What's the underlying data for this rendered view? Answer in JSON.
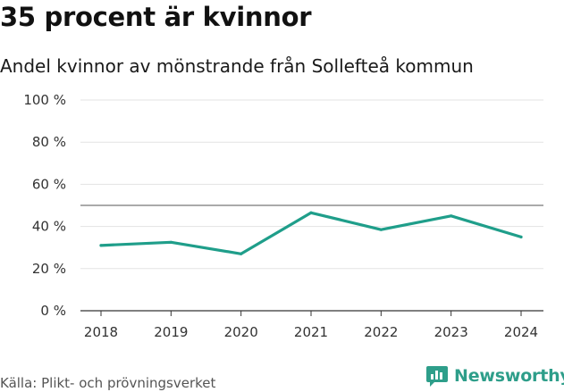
{
  "header": {
    "title": "35 procent är kvinnor",
    "subtitle": "Andel kvinnor av mönstrande från Sollefteå kommun"
  },
  "footer": {
    "source": "Källa: Plikt- och prövningsverket",
    "brand": "Newsworthy",
    "brand_icon": "bar-chart-speech-bubble-icon"
  },
  "colors": {
    "line": "#1f9e8a",
    "grid": "#e3e3e3",
    "reference": "#777777",
    "axis": "#333333",
    "brand": "#2e9e8a"
  },
  "chart_data": {
    "type": "line",
    "title": "35 procent är kvinnor",
    "subtitle": "Andel kvinnor av mönstrande från Sollefteå kommun",
    "xlabel": "",
    "ylabel": "",
    "categories": [
      "2018",
      "2019",
      "2020",
      "2021",
      "2022",
      "2023",
      "2024"
    ],
    "series": [
      {
        "name": "Andel kvinnor",
        "values": [
          31,
          32.5,
          27,
          46.5,
          38.5,
          45,
          35
        ]
      }
    ],
    "reference_line": 50,
    "ylim": [
      0,
      100
    ],
    "yticks": [
      0,
      20,
      40,
      60,
      80,
      100
    ],
    "ytick_labels": [
      "0 %",
      "20 %",
      "40 %",
      "60 %",
      "80 %",
      "100 %"
    ],
    "grid": true,
    "legend": "none"
  }
}
